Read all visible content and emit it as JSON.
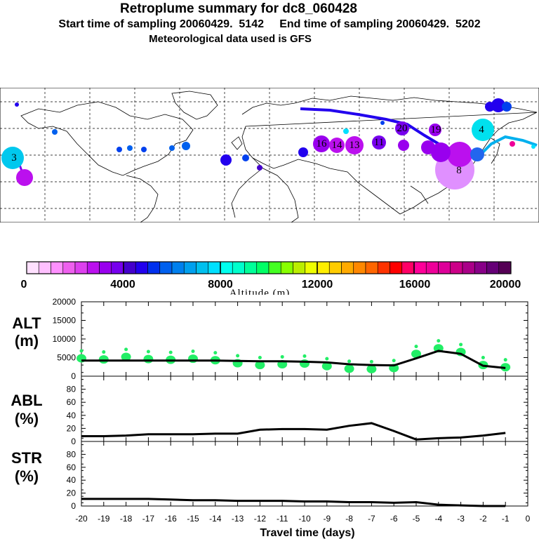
{
  "header": {
    "title": "Retroplume summary for dc8_060428",
    "subtitle_start": "Start time of sampling 20060429.  5142",
    "subtitle_end": "End time of sampling 20060429.  5202",
    "met": "Meteorological data used is GFS"
  },
  "colorbar": {
    "ticks": [
      "0",
      "4000",
      "8000",
      "12000",
      "16000",
      "20000"
    ],
    "label": "Altitude (m)",
    "range": [
      0,
      20000
    ],
    "colors": [
      "#ffe0ff",
      "#ffc0ff",
      "#ff90ff",
      "#ee60ee",
      "#dd40ee",
      "#bb10ee",
      "#9900ee",
      "#7700ee",
      "#4400cc",
      "#2200ee",
      "#0030ee",
      "#0060ee",
      "#0080ee",
      "#00a0ee",
      "#00c0ee",
      "#00e0ff",
      "#00ffee",
      "#00ffcc",
      "#00ff99",
      "#00ff66",
      "#44ff22",
      "#88ff00",
      "#bbee00",
      "#eeff00",
      "#ffee00",
      "#ffcc00",
      "#ffaa00",
      "#ff8800",
      "#ff6600",
      "#ff3300",
      "#ff0000",
      "#ff0066",
      "#ff0099",
      "#ee0099",
      "#dd0099",
      "#cc0088",
      "#aa0088",
      "#880088",
      "#660077",
      "#550055"
    ]
  },
  "map_labels": [
    {
      "text": "3",
      "color": "#00e0ff"
    },
    {
      "text": "4",
      "color": "#00e0ff"
    },
    {
      "text": "8",
      "color": "#ee88ff"
    },
    {
      "text": "20",
      "color": "#9900ee"
    },
    {
      "text": "19",
      "color": "#9900ee"
    },
    {
      "text": "16",
      "color": "#9900ee"
    },
    {
      "text": "14",
      "color": "#9900ee"
    },
    {
      "text": "13",
      "color": "#9900ee"
    },
    {
      "text": "11",
      "color": "#9900ee"
    }
  ],
  "chart_data": [
    {
      "type": "line",
      "panel": "ALT",
      "ylabel": "ALT (m)",
      "ylabel_lines": [
        "ALT",
        "(m)"
      ],
      "ylim": [
        0,
        20000
      ],
      "yticks": [
        "0",
        "5000",
        "10000",
        "15000",
        "20000"
      ],
      "x": [
        -20,
        -19,
        -18,
        -17,
        -16,
        -15,
        -14,
        -13,
        -12,
        -11,
        -10,
        -9,
        -8,
        -7,
        -6,
        -5,
        -4,
        -3,
        -2,
        -1
      ],
      "values": [
        4200,
        4200,
        4200,
        4200,
        4200,
        4200,
        4200,
        4100,
        4000,
        4000,
        3900,
        3700,
        3200,
        3000,
        2900,
        4800,
        6800,
        6000,
        2800,
        2200
      ],
      "bubbles": [
        4800,
        4500,
        5200,
        4600,
        4400,
        4700,
        4300,
        3500,
        3000,
        3200,
        3400,
        2700,
        2000,
        1900,
        2200,
        6000,
        7500,
        6500,
        3000,
        2400
      ]
    },
    {
      "type": "line",
      "panel": "ABL",
      "ylabel": "ABL (%)",
      "ylabel_lines": [
        "ABL",
        "(%)"
      ],
      "ylim": [
        0,
        100
      ],
      "yticks": [
        "0",
        "20",
        "40",
        "60",
        "80"
      ],
      "x": [
        -20,
        -19,
        -18,
        -17,
        -16,
        -15,
        -14,
        -13,
        -12,
        -11,
        -10,
        -9,
        -8,
        -7,
        -6,
        -5,
        -4,
        -3,
        -2,
        -1
      ],
      "values": [
        8,
        8,
        9,
        11,
        11,
        11,
        12,
        12,
        18,
        19,
        19,
        18,
        24,
        28,
        16,
        3,
        5,
        6,
        9,
        13
      ]
    },
    {
      "type": "line",
      "panel": "STR",
      "ylabel": "STR (%)",
      "ylabel_lines": [
        "STR",
        "(%)"
      ],
      "ylim": [
        0,
        100
      ],
      "yticks": [
        "0",
        "20",
        "40",
        "60",
        "80"
      ],
      "x": [
        -20,
        -19,
        -18,
        -17,
        -16,
        -15,
        -14,
        -13,
        -12,
        -11,
        -10,
        -9,
        -8,
        -7,
        -6,
        -5,
        -4,
        -3,
        -2,
        -1
      ],
      "values": [
        11,
        11,
        11,
        11,
        10,
        9,
        9,
        8,
        8,
        8,
        7,
        7,
        6,
        6,
        5,
        6,
        2,
        1,
        0,
        0
      ]
    }
  ],
  "xaxis": {
    "ticks": [
      "-20",
      "-19",
      "-18",
      "-17",
      "-16",
      "-15",
      "-14",
      "-13",
      "-12",
      "-11",
      "-10",
      "-9",
      "-8",
      "-7",
      "-6",
      "-5",
      "-4",
      "-3",
      "-2",
      "-1",
      "0"
    ],
    "label": "Travel time (days)"
  }
}
